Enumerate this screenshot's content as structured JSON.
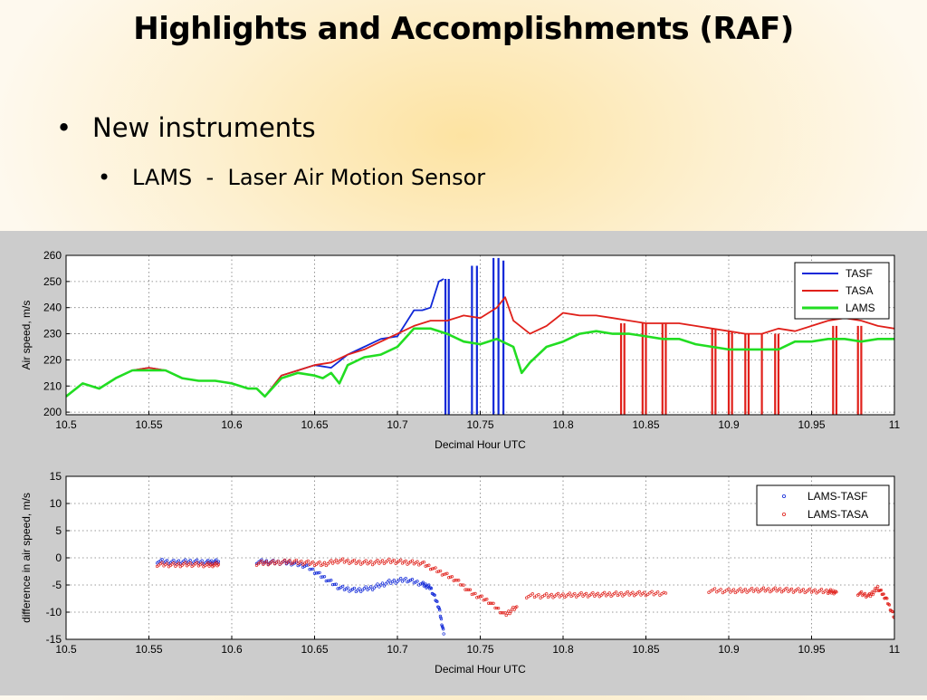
{
  "slide": {
    "title": "Highlights and Accomplishments (RAF)",
    "bullet_level1": "New instruments",
    "bullet_level2": "LAMS  -  Laser Air Motion Sensor"
  },
  "colors": {
    "TASF": "#1028d8",
    "TASA": "#e0201a",
    "LAMS": "#22dd22",
    "LAMS-TASF": "#1028d8",
    "LAMS-TASA": "#e0201a",
    "figure_background": "#cccccc"
  },
  "chart_data": [
    {
      "type": "line",
      "xlabel": "Decimal Hour UTC",
      "ylabel": "Air speed, m/s",
      "xlim": [
        10.5,
        11.0
      ],
      "ylim": [
        199,
        260
      ],
      "xticks": [
        10.5,
        10.55,
        10.6,
        10.65,
        10.7,
        10.75,
        10.8,
        10.85,
        10.9,
        10.95,
        11
      ],
      "xtick_labels": [
        "10.5",
        "10.55",
        "10.6",
        "10.65",
        "10.7",
        "10.75",
        "10.8",
        "10.85",
        "10.9",
        "10.95",
        "11"
      ],
      "yticks": [
        200,
        210,
        220,
        230,
        240,
        250,
        260
      ],
      "ytick_labels": [
        "200",
        "210",
        "220",
        "230",
        "240",
        "250",
        "260"
      ],
      "grid": true,
      "legend_position": "top-right",
      "series": [
        {
          "name": "TASF",
          "x": [
            10.5,
            10.51,
            10.52,
            10.53,
            10.54,
            10.55,
            10.56,
            10.57,
            10.58,
            10.59,
            10.6,
            10.61,
            10.615,
            10.62,
            10.63,
            10.64,
            10.65,
            10.66,
            10.67,
            10.68,
            10.69,
            10.7,
            10.705,
            10.71,
            10.715,
            10.72,
            10.725,
            10.728
          ],
          "y": [
            206,
            211,
            209,
            213,
            216,
            217,
            216,
            213,
            212,
            212,
            211,
            209,
            209,
            206,
            214,
            216,
            218,
            217,
            222,
            225,
            228,
            229,
            234,
            239,
            239,
            240,
            250,
            251
          ],
          "spikes": [
            {
              "x": 10.729,
              "y_from": 251,
              "y_to": 199
            },
            {
              "x": 10.731,
              "y_from": 251,
              "y_to": 199
            },
            {
              "x": 10.745,
              "y_from": 256,
              "y_to": 199
            },
            {
              "x": 10.748,
              "y_from": 256,
              "y_to": 199
            },
            {
              "x": 10.758,
              "y_from": 259,
              "y_to": 199
            },
            {
              "x": 10.761,
              "y_from": 259,
              "y_to": 199
            },
            {
              "x": 10.764,
              "y_from": 258,
              "y_to": 199
            }
          ]
        },
        {
          "name": "TASA",
          "x": [
            10.5,
            10.51,
            10.52,
            10.53,
            10.54,
            10.55,
            10.56,
            10.57,
            10.58,
            10.59,
            10.6,
            10.61,
            10.615,
            10.62,
            10.63,
            10.64,
            10.65,
            10.66,
            10.67,
            10.68,
            10.69,
            10.7,
            10.71,
            10.72,
            10.73,
            10.74,
            10.75,
            10.76,
            10.765,
            10.77,
            10.78,
            10.79,
            10.8,
            10.81,
            10.82,
            10.83,
            10.84,
            10.85,
            10.86,
            10.87,
            10.88,
            10.89,
            10.9,
            10.91,
            10.92,
            10.93,
            10.94,
            10.95,
            10.96,
            10.97,
            10.98,
            10.99,
            11.0
          ],
          "y": [
            206,
            211,
            209,
            213,
            216,
            217,
            216,
            213,
            212,
            212,
            211,
            209,
            209,
            206,
            214,
            216,
            218,
            219,
            222,
            224,
            227,
            230,
            233,
            235,
            235,
            237,
            236,
            240,
            244,
            235,
            230,
            233,
            238,
            237,
            237,
            236,
            235,
            234,
            234,
            234,
            233,
            232,
            231,
            230,
            230,
            232,
            231,
            233,
            235,
            236,
            235,
            233,
            232
          ],
          "spikes": [
            {
              "x": 10.835,
              "y_from": 234,
              "y_to": 199
            },
            {
              "x": 10.837,
              "y_from": 234,
              "y_to": 199
            },
            {
              "x": 10.848,
              "y_from": 234,
              "y_to": 199
            },
            {
              "x": 10.85,
              "y_from": 234,
              "y_to": 199
            },
            {
              "x": 10.86,
              "y_from": 234,
              "y_to": 199
            },
            {
              "x": 10.862,
              "y_from": 234,
              "y_to": 199
            },
            {
              "x": 10.89,
              "y_from": 232,
              "y_to": 199
            },
            {
              "x": 10.892,
              "y_from": 232,
              "y_to": 199
            },
            {
              "x": 10.9,
              "y_from": 231,
              "y_to": 199
            },
            {
              "x": 10.902,
              "y_from": 231,
              "y_to": 199
            },
            {
              "x": 10.91,
              "y_from": 230,
              "y_to": 199
            },
            {
              "x": 10.912,
              "y_from": 230,
              "y_to": 199
            },
            {
              "x": 10.92,
              "y_from": 230,
              "y_to": 199
            },
            {
              "x": 10.928,
              "y_from": 230,
              "y_to": 199
            },
            {
              "x": 10.93,
              "y_from": 230,
              "y_to": 199
            },
            {
              "x": 10.963,
              "y_from": 233,
              "y_to": 199
            },
            {
              "x": 10.965,
              "y_from": 233,
              "y_to": 199
            },
            {
              "x": 10.978,
              "y_from": 233,
              "y_to": 199
            },
            {
              "x": 10.98,
              "y_from": 233,
              "y_to": 199
            }
          ]
        },
        {
          "name": "LAMS",
          "x": [
            10.5,
            10.51,
            10.52,
            10.53,
            10.54,
            10.55,
            10.56,
            10.57,
            10.58,
            10.59,
            10.6,
            10.61,
            10.615,
            10.62,
            10.63,
            10.64,
            10.65,
            10.655,
            10.66,
            10.665,
            10.67,
            10.68,
            10.69,
            10.7,
            10.71,
            10.72,
            10.73,
            10.74,
            10.75,
            10.76,
            10.77,
            10.775,
            10.78,
            10.79,
            10.8,
            10.81,
            10.82,
            10.83,
            10.84,
            10.85,
            10.86,
            10.87,
            10.88,
            10.89,
            10.9,
            10.91,
            10.92,
            10.93,
            10.94,
            10.95,
            10.96,
            10.97,
            10.98,
            10.99,
            11.0
          ],
          "y": [
            206,
            211,
            209,
            213,
            216,
            216,
            216,
            213,
            212,
            212,
            211,
            209,
            209,
            206,
            213,
            215,
            214,
            213,
            215,
            211,
            218,
            221,
            222,
            225,
            232,
            232,
            230,
            227,
            226,
            228,
            225,
            215,
            219,
            225,
            227,
            230,
            231,
            230,
            230,
            229,
            228,
            228,
            226,
            225,
            224,
            224,
            224,
            224,
            227,
            227,
            228,
            228,
            227,
            228,
            228
          ]
        }
      ]
    },
    {
      "type": "scatter",
      "xlabel": "Decimal Hour UTC",
      "ylabel": "difference in air speed, m/s",
      "xlim": [
        10.5,
        11.0
      ],
      "ylim": [
        -15,
        15
      ],
      "xticks": [
        10.5,
        10.55,
        10.6,
        10.65,
        10.7,
        10.75,
        10.8,
        10.85,
        10.9,
        10.95,
        11
      ],
      "xtick_labels": [
        "10.5",
        "10.55",
        "10.6",
        "10.65",
        "10.7",
        "10.75",
        "10.8",
        "10.85",
        "10.9",
        "10.95",
        "11"
      ],
      "yticks": [
        -15,
        -10,
        -5,
        0,
        5,
        10,
        15
      ],
      "ytick_labels": [
        "-15",
        "-10",
        "-5",
        "0",
        "5",
        "10",
        "15"
      ],
      "grid": true,
      "legend_position": "top-right",
      "series": [
        {
          "name": "LAMS-TASF",
          "segments": [
            {
              "x": [
                10.555,
                10.565,
                10.575,
                10.585,
                10.592
              ],
              "y": [
                -0.6,
                -0.8,
                -0.7,
                -0.8,
                -0.7
              ]
            },
            {
              "x": [
                10.615,
                10.625,
                10.635,
                10.645,
                10.655,
                10.665,
                10.675,
                10.685,
                10.695,
                10.705,
                10.715,
                10.72,
                10.725,
                10.728
              ],
              "y": [
                -0.7,
                -0.8,
                -0.9,
                -1.5,
                -3.5,
                -5.5,
                -6.0,
                -5.5,
                -4.5,
                -4.0,
                -4.8,
                -5.5,
                -9.0,
                -14.0
              ]
            }
          ]
        },
        {
          "name": "LAMS-TASA",
          "segments": [
            {
              "x": [
                10.555,
                10.565,
                10.575,
                10.585,
                10.592
              ],
              "y": [
                -1.2,
                -1.3,
                -1.2,
                -1.3,
                -1.2
              ]
            },
            {
              "x": [
                10.615,
                10.625,
                10.635,
                10.645,
                10.655,
                10.665,
                10.675,
                10.685,
                10.695,
                10.705,
                10.715,
                10.725,
                10.735,
                10.745,
                10.755,
                10.765,
                10.772
              ],
              "y": [
                -1.0,
                -0.9,
                -0.7,
                -0.9,
                -1.2,
                -0.5,
                -0.8,
                -0.9,
                -0.6,
                -0.8,
                -1.0,
                -2.5,
                -4.0,
                -6.5,
                -8.0,
                -10.5,
                -9.0
              ]
            },
            {
              "x": [
                10.778,
                10.79,
                10.8,
                10.81,
                10.82,
                10.83,
                10.84,
                10.85,
                10.862
              ],
              "y": [
                -7.0,
                -7.0,
                -6.9,
                -6.8,
                -6.8,
                -6.7,
                -6.6,
                -6.6,
                -6.5
              ]
            },
            {
              "x": [
                10.888,
                10.9,
                10.91,
                10.92,
                10.93,
                10.94,
                10.95,
                10.96,
                10.965
              ],
              "y": [
                -6.0,
                -6.1,
                -6.0,
                -5.9,
                -5.9,
                -6.0,
                -6.1,
                -6.2,
                -6.3
              ]
            },
            {
              "x": [
                10.978,
                10.985,
                10.99,
                10.995,
                11.0
              ],
              "y": [
                -6.5,
                -7.0,
                -5.5,
                -7.5,
                -11.0
              ]
            }
          ]
        }
      ]
    }
  ]
}
